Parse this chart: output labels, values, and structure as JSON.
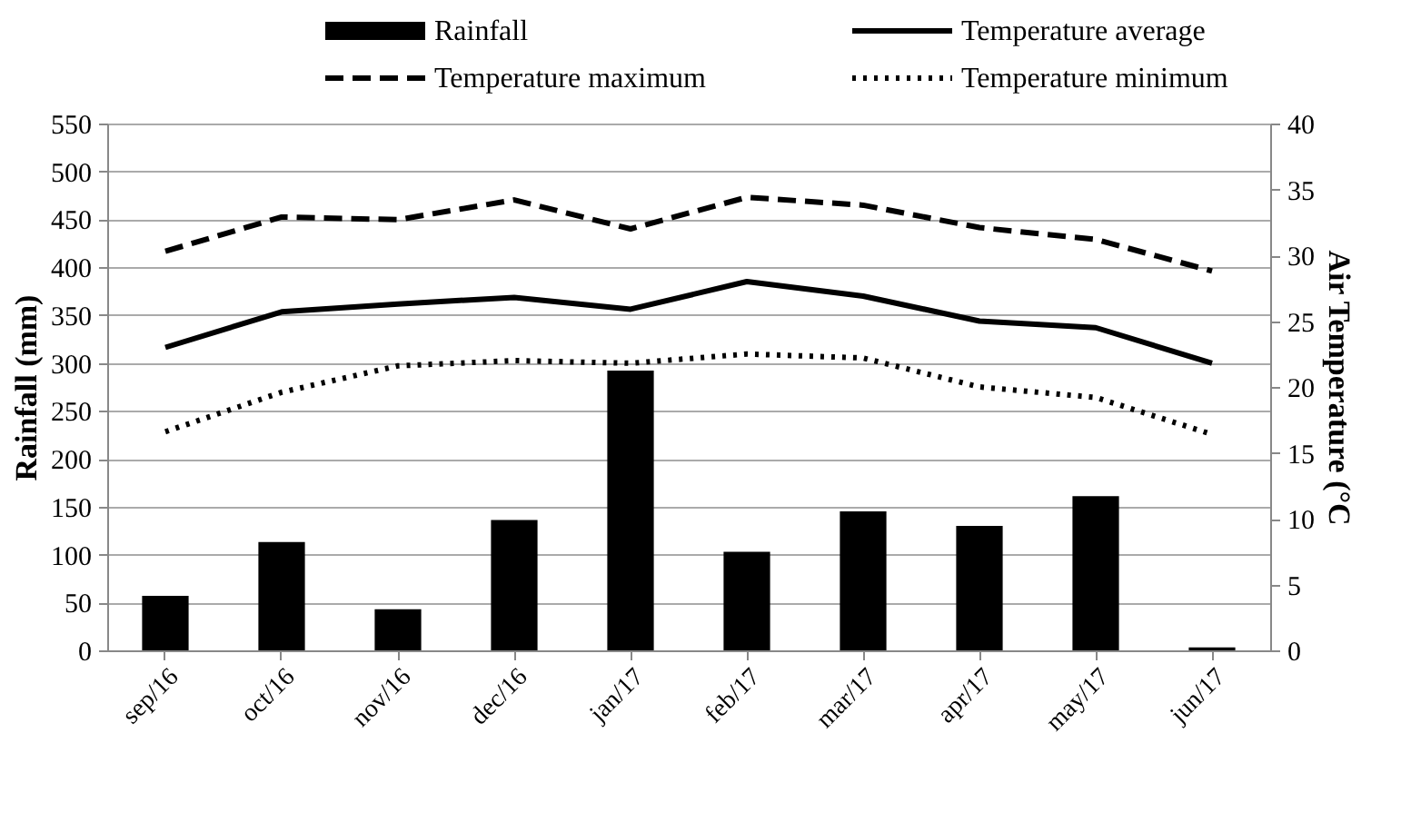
{
  "chart_data": {
    "type": "bar",
    "categories": [
      "sep/16",
      "oct/16",
      "nov/16",
      "dec/16",
      "jan/17",
      "feb/17",
      "mar/17",
      "apr/17",
      "may/17",
      "jun/17"
    ],
    "ylabel": "Rainfall (mm)",
    "y2label": "Air Temperature (°C",
    "ylim": [
      0,
      550
    ],
    "yticks": [
      0,
      50,
      100,
      150,
      200,
      250,
      300,
      350,
      400,
      450,
      500,
      550
    ],
    "y2lim": [
      0,
      40
    ],
    "y2ticks": [
      0,
      5,
      10,
      15,
      20,
      25,
      30,
      35,
      40
    ],
    "grid": "y",
    "legend": "top",
    "series": [
      {
        "name": "Rainfall",
        "color": "#000000",
        "values": [
          57,
          113,
          43,
          136,
          292,
          103,
          145,
          130,
          161,
          3
        ]
      },
      {
        "name": "Temperature average",
        "type": "line",
        "axis": "y2",
        "line_style": "solid",
        "color": "#000000",
        "values": [
          23.0,
          25.7,
          26.3,
          26.8,
          25.9,
          28.0,
          26.9,
          25.0,
          24.5,
          21.8
        ]
      },
      {
        "name": "Temperature maximum",
        "type": "line",
        "axis": "y2",
        "line_style": "dashed",
        "color": "#000000",
        "values": [
          30.3,
          32.9,
          32.7,
          34.2,
          32.0,
          34.4,
          33.8,
          32.1,
          31.2,
          28.8
        ]
      },
      {
        "name": "Temperature minimum",
        "type": "line",
        "axis": "y2",
        "line_style": "dotted",
        "color": "#000000",
        "values": [
          16.6,
          19.6,
          21.6,
          22.0,
          21.8,
          22.5,
          22.2,
          20.0,
          19.2,
          16.4
        ]
      }
    ]
  }
}
